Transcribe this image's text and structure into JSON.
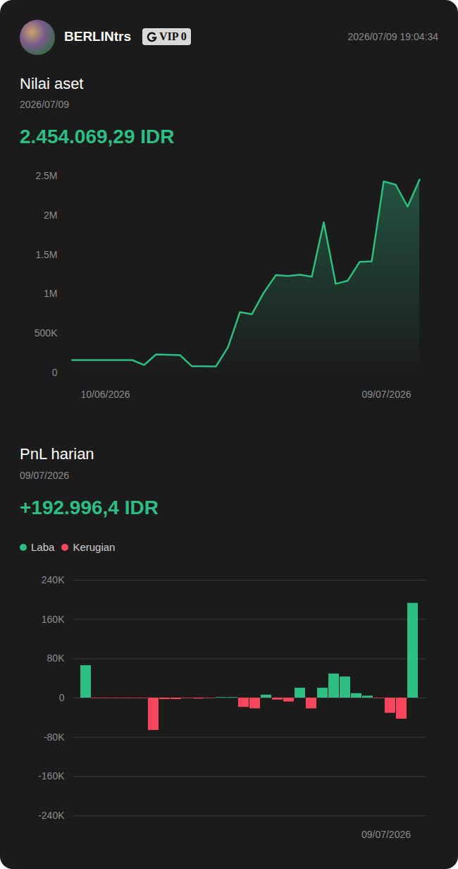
{
  "header": {
    "user": "BERLINtrs",
    "badge": "VIP 0",
    "timestamp": "2026/07/09 19:04:34"
  },
  "chart_data": [
    {
      "type": "area",
      "title": "Nilai aset",
      "subtitle": "2026/07/09",
      "headline": "2.454.069,29 IDR",
      "color": "#2ebd85",
      "categories": [
        "10/06/2026",
        null,
        null,
        null,
        null,
        null,
        null,
        null,
        null,
        null,
        null,
        null,
        null,
        null,
        null,
        null,
        null,
        null,
        null,
        null,
        null,
        null,
        null,
        null,
        null,
        null,
        null,
        null,
        null,
        "09/07/2026"
      ],
      "values": [
        161000,
        161000,
        161000,
        161000,
        161000,
        161000,
        99000,
        233000,
        228000,
        224000,
        82000,
        82000,
        81000,
        323000,
        770000,
        744000,
        1020000,
        1240000,
        1230000,
        1245000,
        1220000,
        1910000,
        1130000,
        1170000,
        1410000,
        1415000,
        2430000,
        2390000,
        2110000,
        2454069.29
      ],
      "ylim": [
        0,
        2500000
      ],
      "yticks": [
        0,
        {
          "value": 500000,
          "label": "500K"
        },
        {
          "value": 1000000,
          "label": "1M"
        },
        {
          "value": 1500000,
          "label": "1.5M"
        },
        {
          "value": 2000000,
          "label": "2M"
        },
        {
          "value": 2500000,
          "label": "2.5M"
        }
      ],
      "grid": false
    },
    {
      "type": "bar",
      "title": "PnL harian",
      "subtitle": "09/07/2026",
      "headline": "+192.996,4 IDR",
      "categories": [
        null,
        null,
        null,
        null,
        null,
        null,
        null,
        null,
        null,
        null,
        null,
        null,
        null,
        null,
        null,
        null,
        null,
        null,
        null,
        null,
        null,
        null,
        null,
        null,
        null,
        null,
        null,
        null,
        null,
        "09/07/2026"
      ],
      "series": [
        {
          "name": "Laba",
          "color": "#2ebd85",
          "values": [
            66000,
            null,
            null,
            null,
            null,
            null,
            null,
            null,
            null,
            null,
            null,
            null,
            1000,
            1000,
            null,
            null,
            6000,
            null,
            null,
            20000,
            null,
            20000,
            49000,
            43000,
            9000,
            4000,
            null,
            null,
            null,
            192996.4
          ]
        },
        {
          "name": "Kerugian",
          "color": "#f6465d",
          "values": [
            null,
            -1000,
            -1000,
            -1000,
            -1000,
            -1000,
            -66000,
            -3000,
            -3000,
            -1000,
            -2000,
            -1000,
            null,
            null,
            -19000,
            -22000,
            null,
            -4000,
            -8000,
            null,
            -22000,
            null,
            null,
            null,
            null,
            null,
            -1000,
            -31000,
            -43000,
            null
          ]
        }
      ],
      "ylim": [
        -240000,
        240000
      ],
      "yticks": [
        {
          "value": -240000,
          "label": "-240K"
        },
        {
          "value": -160000,
          "label": "-160K"
        },
        {
          "value": -80000,
          "label": "-80K"
        },
        0,
        {
          "value": 80000,
          "label": "80K"
        },
        {
          "value": 160000,
          "label": "160K"
        },
        {
          "value": 240000,
          "label": "240K"
        }
      ],
      "grid": true,
      "legend": "top-left"
    }
  ]
}
